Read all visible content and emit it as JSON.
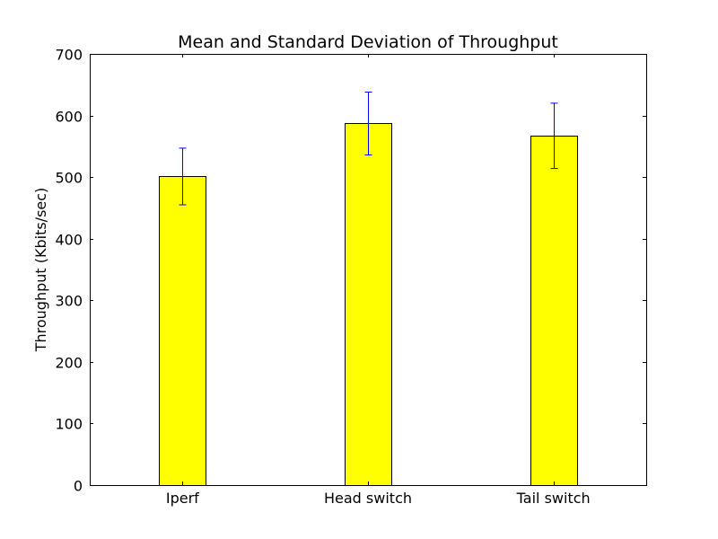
{
  "chart_data": {
    "type": "bar",
    "title": "Mean and Standard Deviation of Throughput",
    "xlabel": "",
    "ylabel": "Throughput (Kbits/sec)",
    "categories": [
      "Iperf",
      "Head switch",
      "Tail switch"
    ],
    "values": [
      501,
      587,
      567
    ],
    "errors": [
      46,
      51,
      53
    ],
    "ylim": [
      0,
      700
    ],
    "yticks": [
      "0",
      "100",
      "200",
      "300",
      "400",
      "500",
      "600",
      "700"
    ],
    "grid": false,
    "legend": "none",
    "bar_color": "#ffff00",
    "bar_edge_color": "#000000",
    "error_color": "#0000ff"
  }
}
